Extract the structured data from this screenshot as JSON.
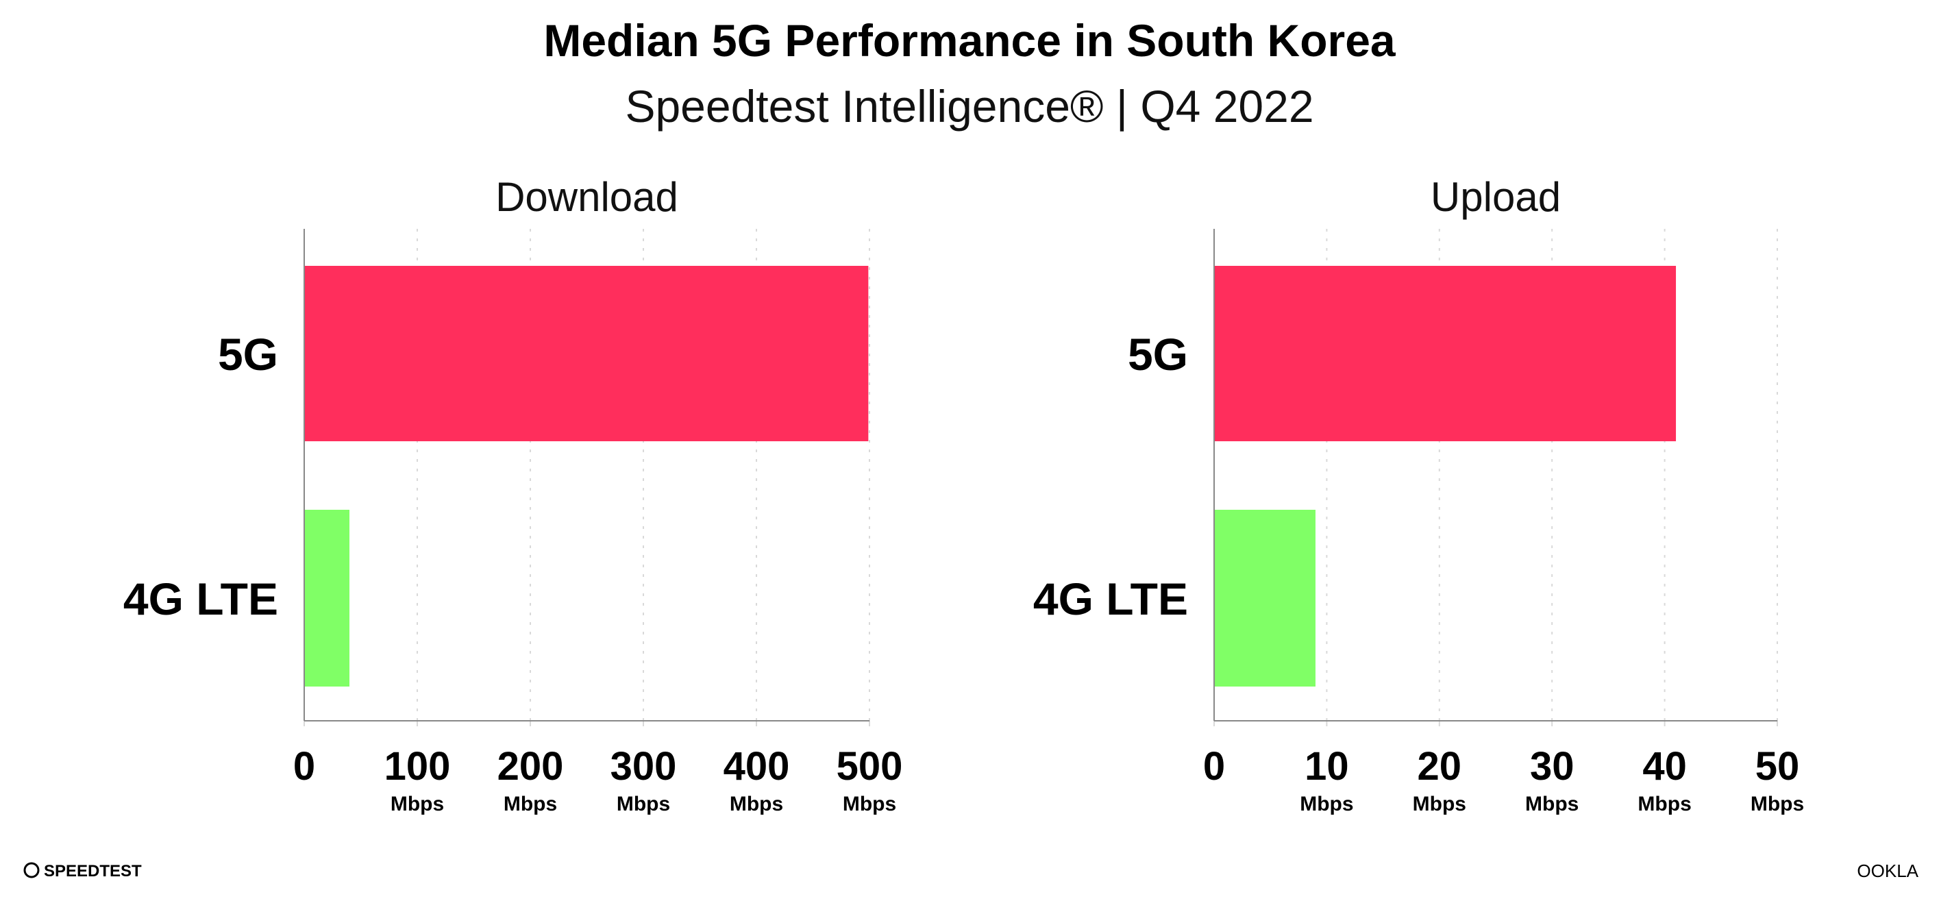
{
  "title": "Median 5G Performance in South Korea",
  "subtitle": "Speedtest Intelligence® | Q4 2022",
  "logos": {
    "left": "SPEEDTEST",
    "right": "OOKLA"
  },
  "colors": {
    "5G": "#ff2e5c",
    "4G LTE": "#80ff66",
    "grid": "#d9d9d9",
    "axis": "#888888"
  },
  "chart_data": [
    {
      "type": "bar",
      "orientation": "horizontal",
      "title": "Download",
      "categories": [
        "5G",
        "4G LTE"
      ],
      "values": [
        499,
        40
      ],
      "xlim": [
        0,
        500
      ],
      "ticks": [
        "0",
        "100",
        "200",
        "300",
        "400",
        "500"
      ],
      "tick_values": [
        0,
        100,
        200,
        300,
        400,
        500
      ],
      "tick_unit": "Mbps",
      "grid": "vertical-dotted"
    },
    {
      "type": "bar",
      "orientation": "horizontal",
      "title": "Upload",
      "categories": [
        "5G",
        "4G LTE"
      ],
      "values": [
        41,
        9
      ],
      "xlim": [
        0,
        50
      ],
      "ticks": [
        "0",
        "10",
        "20",
        "30",
        "40",
        "50"
      ],
      "tick_values": [
        0,
        10,
        20,
        30,
        40,
        50
      ],
      "tick_unit": "Mbps",
      "grid": "vertical-dotted"
    }
  ]
}
